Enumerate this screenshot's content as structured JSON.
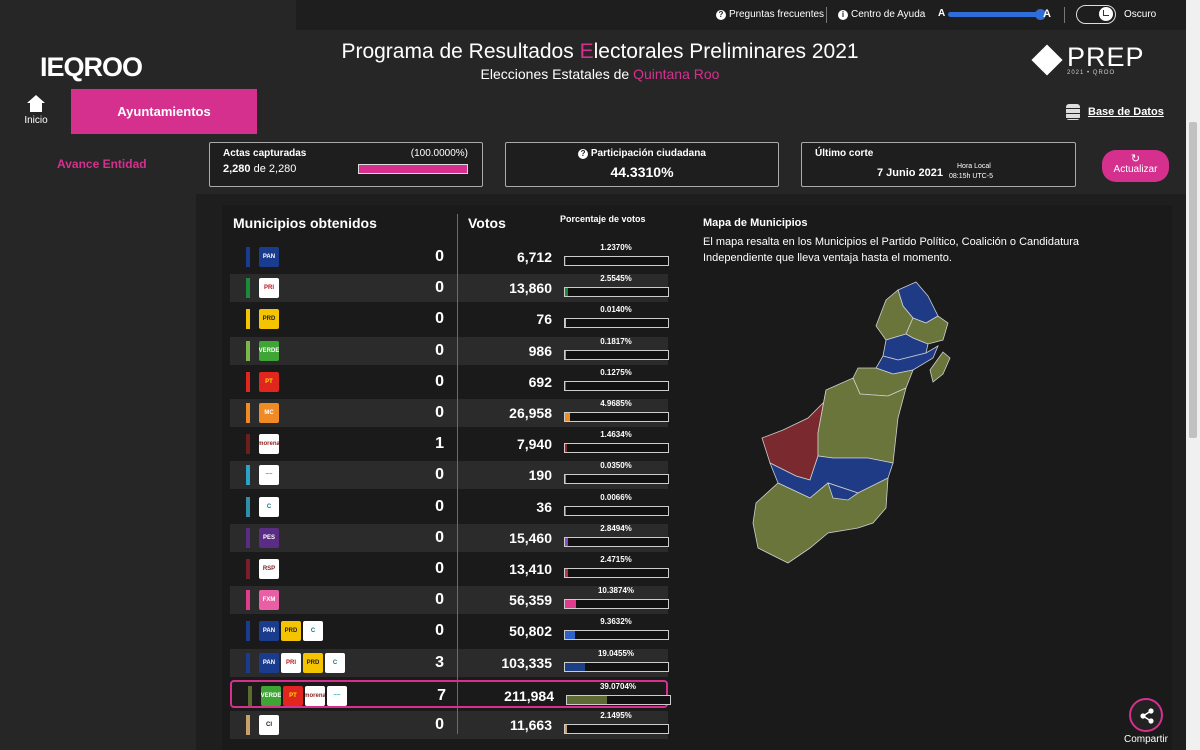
{
  "topbar": {
    "faq": "Preguntas frecuentes",
    "help": "Centro de Ayuda",
    "font_small": "A",
    "font_large": "A",
    "font_slider_level": 1.0,
    "dark_mode_label": "Oscuro",
    "dark_mode_on": true
  },
  "header": {
    "logo_text": "IEQROO",
    "title_pre": "Programa de Resultados ",
    "title_accent": "E",
    "title_post": "lectorales Preliminares 2021",
    "subtitle_pre": "Elecciones Estatales de ",
    "subtitle_accent": "Quintana Roo",
    "prep_logo": "PREP",
    "prep_sub": "2021 • QROO",
    "home_label": "Inicio",
    "tab_active": "Ayuntamientos",
    "database_link": "Base de Datos",
    "avance_link": "Avance Entidad"
  },
  "stats": {
    "actas_label": "Actas capturadas",
    "actas_count": "2,280",
    "actas_of": " de ",
    "actas_total": "2,280",
    "actas_pct": "(100.0000%)",
    "actas_progress": 100,
    "participacion_label": "Participación ciudadana",
    "participacion_value": "44.3310%",
    "corte_label": "Último corte",
    "corte_date": "7 Junio 2021",
    "corte_hora_label": "Hora Local",
    "corte_time": "08:15h UTC-5",
    "refresh_label": "Actualizar"
  },
  "table": {
    "col_municipios": "Municipios obtenidos",
    "col_votos": "Votos",
    "col_pct": "Porcentaje de votos",
    "rows": [
      {
        "logos": [
          "PAN"
        ],
        "stripe": "#1a3c8f",
        "municipios": "0",
        "votos": "6,712",
        "pct_label": "1.2370%",
        "pct": 1.237,
        "bar_color": "#1a3c8f"
      },
      {
        "logos": [
          "PRI"
        ],
        "stripe": "#1b8a3a",
        "municipios": "0",
        "votos": "13,860",
        "pct_label": "2.5545%",
        "pct": 2.5545,
        "bar_color": "#1b8a3a"
      },
      {
        "logos": [
          "PRD"
        ],
        "stripe": "#f5c400",
        "municipios": "0",
        "votos": "76",
        "pct_label": "0.0140%",
        "pct": 0.014,
        "bar_color": "#f5c400"
      },
      {
        "logos": [
          "VERDE"
        ],
        "stripe": "#7ab648",
        "municipios": "0",
        "votos": "986",
        "pct_label": "0.1817%",
        "pct": 0.1817,
        "bar_color": "#7ab648"
      },
      {
        "logos": [
          "PT"
        ],
        "stripe": "#e0261f",
        "municipios": "0",
        "votos": "692",
        "pct_label": "0.1275%",
        "pct": 0.1275,
        "bar_color": "#e0261f"
      },
      {
        "logos": [
          "MC"
        ],
        "stripe": "#f08a24",
        "municipios": "0",
        "votos": "26,958",
        "pct_label": "4.9685%",
        "pct": 4.9685,
        "bar_color": "#f08a24"
      },
      {
        "logos": [
          "morena"
        ],
        "stripe": "#6b1f1f",
        "municipios": "1",
        "votos": "7,940",
        "pct_label": "1.4634%",
        "pct": 1.4634,
        "bar_color": "#8b2a2a"
      },
      {
        "logos": [
          "MAS"
        ],
        "stripe": "#2aa3c4",
        "municipios": "0",
        "votos": "190",
        "pct_label": "0.0350%",
        "pct": 0.035,
        "bar_color": "#2aa3c4"
      },
      {
        "logos": [
          "C"
        ],
        "stripe": "#2f8fa8",
        "municipios": "0",
        "votos": "36",
        "pct_label": "0.0066%",
        "pct": 0.0066,
        "bar_color": "#2f8fa8"
      },
      {
        "logos": [
          "PES"
        ],
        "stripe": "#5b2c83",
        "municipios": "0",
        "votos": "15,460",
        "pct_label": "2.8494%",
        "pct": 2.8494,
        "bar_color": "#8a4bc2"
      },
      {
        "logos": [
          "RSP"
        ],
        "stripe": "#7a1f2a",
        "municipios": "0",
        "votos": "13,410",
        "pct_label": "2.4715%",
        "pct": 2.4715,
        "bar_color": "#b3354a"
      },
      {
        "logos": [
          "FXM"
        ],
        "stripe": "#e03c8e",
        "municipios": "0",
        "votos": "56,359",
        "pct_label": "10.3874%",
        "pct": 10.3874,
        "bar_color": "#e03c8e"
      },
      {
        "logos": [
          "PAN",
          "PRD",
          "C"
        ],
        "stripe": "#1a3c8f",
        "municipios": "0",
        "votos": "50,802",
        "pct_label": "9.3632%",
        "pct": 9.3632,
        "bar_color": "#2f62c8"
      },
      {
        "logos": [
          "PAN",
          "PRI",
          "PRD",
          "C"
        ],
        "stripe": "#1a3c8f",
        "municipios": "3",
        "votos": "103,335",
        "pct_label": "19.0455%",
        "pct": 19.0455,
        "bar_color": "#1d3f86"
      },
      {
        "logos": [
          "VERDE",
          "PT",
          "morena",
          "MAS"
        ],
        "stripe": "#5c6b2e",
        "municipios": "7",
        "votos": "211,984",
        "pct_label": "39.0704%",
        "pct": 39.0704,
        "bar_color": "#5e6a35",
        "highlight": true
      },
      {
        "logos": [
          "CI"
        ],
        "stripe": "#c9a06a",
        "municipios": "0",
        "votos": "11,663",
        "pct_label": "2.1495%",
        "pct": 2.1495,
        "bar_color": "#c9a06a"
      }
    ]
  },
  "map": {
    "title": "Mapa de Municipios",
    "description": "El mapa resalta en los Municipios el Partido Político, Coalición o Candidatura Independiente que lleva ventaja hasta el momento.",
    "colors": {
      "coalicion_verde_pt_morena": "#69753b",
      "coalicion_pan_pri_prd": "#1f3b86",
      "morena": "#7a2a2e"
    }
  },
  "share": {
    "label": "Compartir"
  },
  "colors": {
    "accent": "#d6308f",
    "background": "#1e1e1e"
  }
}
